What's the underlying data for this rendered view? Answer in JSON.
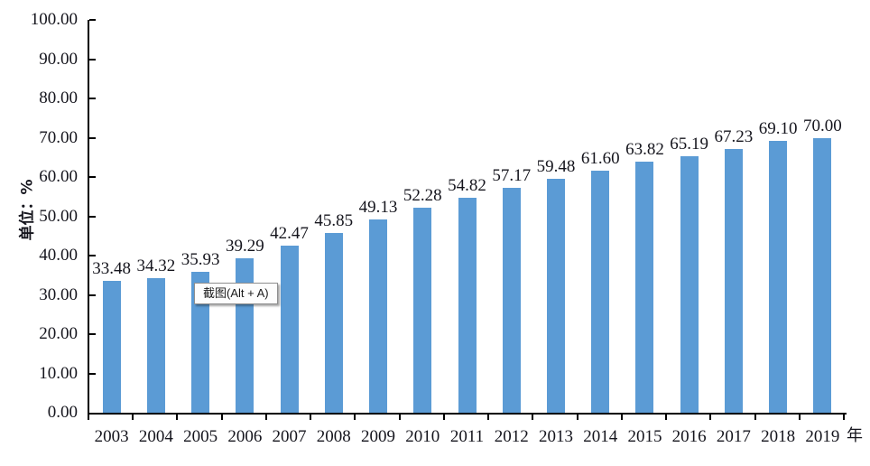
{
  "chart_data": {
    "type": "bar",
    "title": "",
    "categories": [
      "2003",
      "2004",
      "2005",
      "2006",
      "2007",
      "2008",
      "2009",
      "2010",
      "2011",
      "2012",
      "2013",
      "2014",
      "2015",
      "2016",
      "2017",
      "2018",
      "2019"
    ],
    "values": [
      33.48,
      34.32,
      35.93,
      39.29,
      42.47,
      45.85,
      49.13,
      52.28,
      54.82,
      57.17,
      59.48,
      61.6,
      63.82,
      65.19,
      67.23,
      69.1,
      70.0
    ],
    "value_labels": [
      "33.48",
      "34.32",
      "35.93",
      "39.29",
      "42.47",
      "45.85",
      "49.13",
      "52.28",
      "54.82",
      "57.17",
      "59.48",
      "61.60",
      "63.82",
      "65.19",
      "67.23",
      "69.10",
      "70.00"
    ],
    "xlabel": "年",
    "ylabel": "单位：%",
    "ylim": [
      0,
      100
    ],
    "y_tick_step": 10,
    "y_tick_labels": [
      "0.00",
      "10.00",
      "20.00",
      "30.00",
      "40.00",
      "50.00",
      "60.00",
      "70.00",
      "80.00",
      "90.00",
      "100.00"
    ],
    "grid": false,
    "legend": "none",
    "bar_color": "#5B9BD5",
    "axis_color": "#000000",
    "text_color": "#15151d"
  },
  "overlay": {
    "screenshot_tooltip_label": "截图(Alt + A)"
  }
}
